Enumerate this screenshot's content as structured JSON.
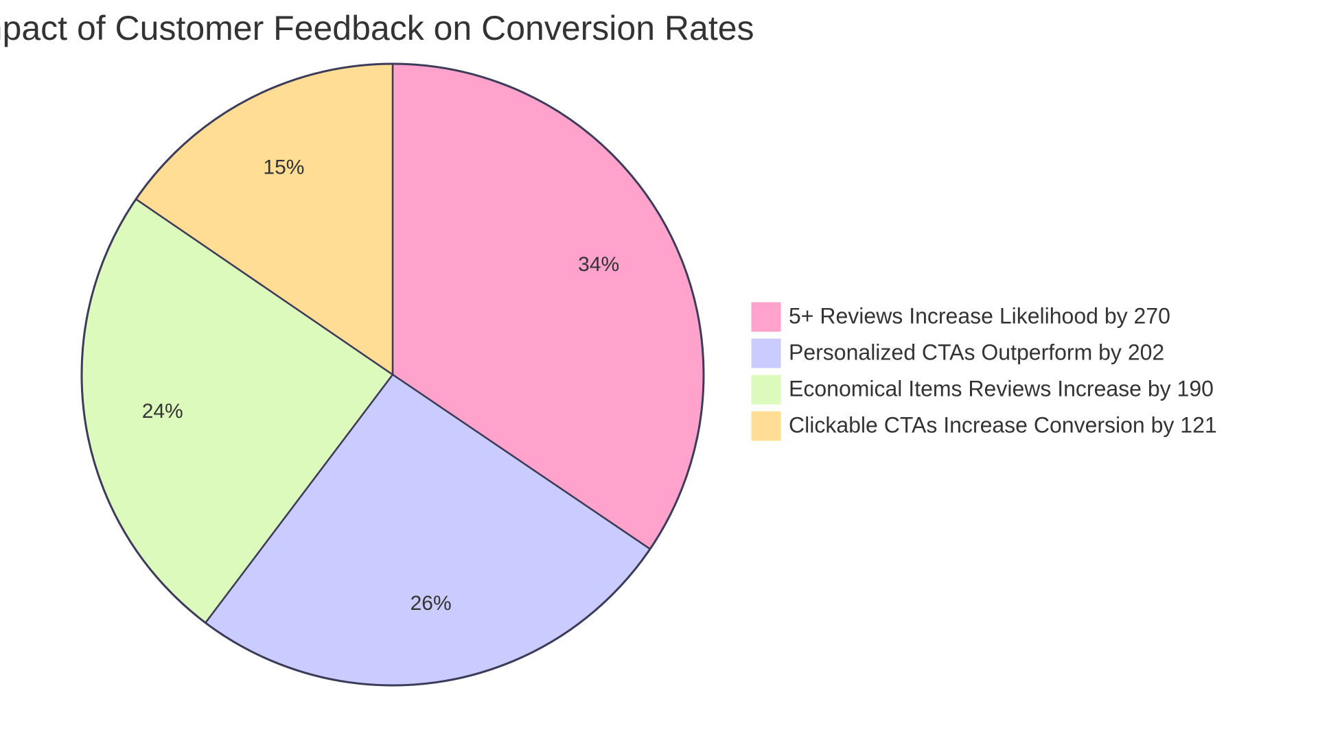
{
  "chart_data": {
    "type": "pie",
    "title": "Impact of Customer Feedback on Conversion Rates",
    "slices": [
      {
        "label": "5+ Reviews Increase Likelihood by 270",
        "value": 270,
        "percent_label": "34%",
        "color": "#ffa3cc"
      },
      {
        "label": "Personalized CTAs Outperform by 202",
        "value": 202,
        "percent_label": "26%",
        "color": "#cacbff"
      },
      {
        "label": "Economical Items Reviews Increase by 190",
        "value": 190,
        "percent_label": "24%",
        "color": "#dcfabb"
      },
      {
        "label": "Clickable CTAs Increase Conversion by 121",
        "value": 121,
        "percent_label": "15%",
        "color": "#ffdd94"
      }
    ],
    "legend_position": "right"
  }
}
